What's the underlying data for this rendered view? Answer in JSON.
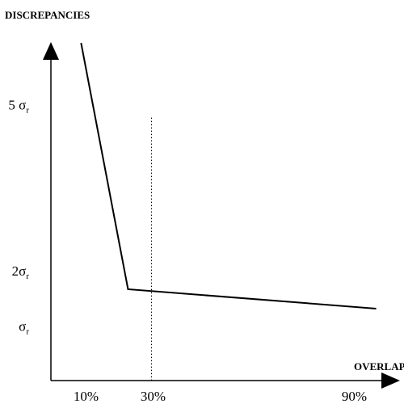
{
  "chart_data": {
    "type": "line",
    "ylabel": "DISCREPANCIES",
    "xlabel": "OVERLAP",
    "xlim": [
      0,
      100
    ],
    "ylim": [
      0,
      6
    ],
    "x_ticks": [
      {
        "value": 10,
        "label": "10%"
      },
      {
        "value": 30,
        "label": "30%"
      },
      {
        "value": 90,
        "label": "90%"
      }
    ],
    "y_ticks": [
      {
        "value": 1,
        "symbol": "σ",
        "subscript": "r",
        "prefix": ""
      },
      {
        "value": 2,
        "symbol": "σ",
        "subscript": "r",
        "prefix": "2"
      },
      {
        "value": 5,
        "symbol": "σ",
        "subscript": "r",
        "prefix": "5 "
      }
    ],
    "series": [
      {
        "x": [
          9,
          23,
          97
        ],
        "y": [
          6.1,
          1.65,
          1.3
        ],
        "color": "#000000",
        "style": "solid"
      }
    ],
    "reference_lines": [
      {
        "orientation": "vertical",
        "x": 30,
        "style": "dotted",
        "color": "#000000",
        "y_top": 4.75
      }
    ],
    "grid": false,
    "legend": "none"
  }
}
